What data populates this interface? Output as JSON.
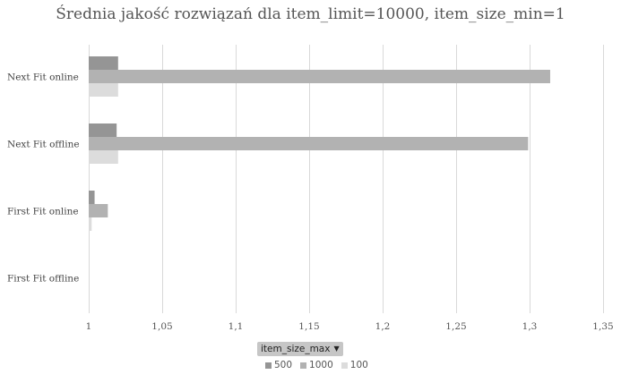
{
  "chart_data": {
    "type": "bar",
    "orientation": "horizontal",
    "title": "Średnia jakość rozwiązań dla item_limit=10000, item_size_min=1",
    "categories": [
      "Next Fit online",
      "Next Fit offline",
      "First Fit online",
      "First Fit offline"
    ],
    "series": [
      {
        "name": "500",
        "color": "#959595",
        "values": [
          1.02,
          1.019,
          1.004,
          1.0
        ]
      },
      {
        "name": "1000",
        "color": "#b2b2b2",
        "values": [
          1.314,
          1.299,
          1.013,
          1.0
        ]
      },
      {
        "name": "100",
        "color": "#dcdcdc",
        "values": [
          1.02,
          1.02,
          1.002,
          1.0
        ]
      }
    ],
    "xlim": [
      1,
      1.35
    ],
    "xticks": [
      1,
      1.05,
      1.1,
      1.15,
      1.2,
      1.25,
      1.3,
      1.35
    ],
    "xtick_labels": [
      "1",
      "1,05",
      "1,1",
      "1,15",
      "1,2",
      "1,25",
      "1,3",
      "1,35"
    ],
    "grid": true,
    "legend_placement": "bottom",
    "legend_title": "item_size_max"
  }
}
